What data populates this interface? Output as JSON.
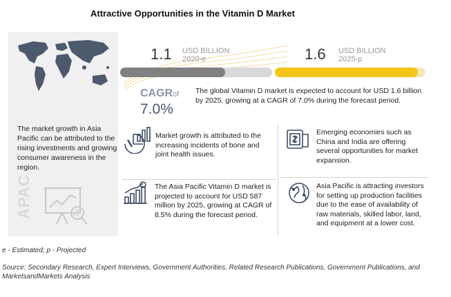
{
  "title": "Attractive Opportunities in the Vitamin D Market",
  "left_panel": {
    "text": "The market growth in Asia Pacific can be attributed to the rising investments and growing consumer awareness in the region.",
    "region_label": "APAC"
  },
  "market_2020": {
    "value": "1.1",
    "unit": "USD BILLION",
    "year": "2020-e",
    "bar_color": "#808080",
    "bar_fill": 0.69
  },
  "market_2025": {
    "value": "1.6",
    "unit": "USD BILLION",
    "year": "2025-p",
    "bar_color": "#f5c518",
    "bar_fill": 0.95
  },
  "cagr": {
    "label": "CAGR",
    "of": "of",
    "value": "7.0%"
  },
  "market_description": "The global Vitamin D market is expected to account for USD 1.6 billion by 2025, growing at a CAGR of 7.0% during the forecast period.",
  "insights": [
    {
      "icon": "bone-health-chart-icon",
      "text": "Market growth is attributed to the increasing incidents of bone and joint health issues."
    },
    {
      "icon": "money-growth-icon",
      "text": "Emerging economies such as China and India are offering several opportunities for market expansion."
    },
    {
      "icon": "bar-growth-chart-icon",
      "text": "The Asia Pacific Vitamin D market is projected to account for USD 587 million by 2025, growing at CAGR of 8.5% during the forecast period."
    },
    {
      "icon": "globe-network-icon",
      "text": "Asia Pacific is attracting investors for setting up production facilities due to the ease of availability of raw materials, skilled labor, land, and equipment at a lower cost."
    }
  ],
  "footnote": "e - Estimated; p - Projected",
  "source": "Source: Secondary Research, Expert Interviews, Government Authorities, Related Research Publications, Government Publications, and MarketsandMarkets Analysis"
}
